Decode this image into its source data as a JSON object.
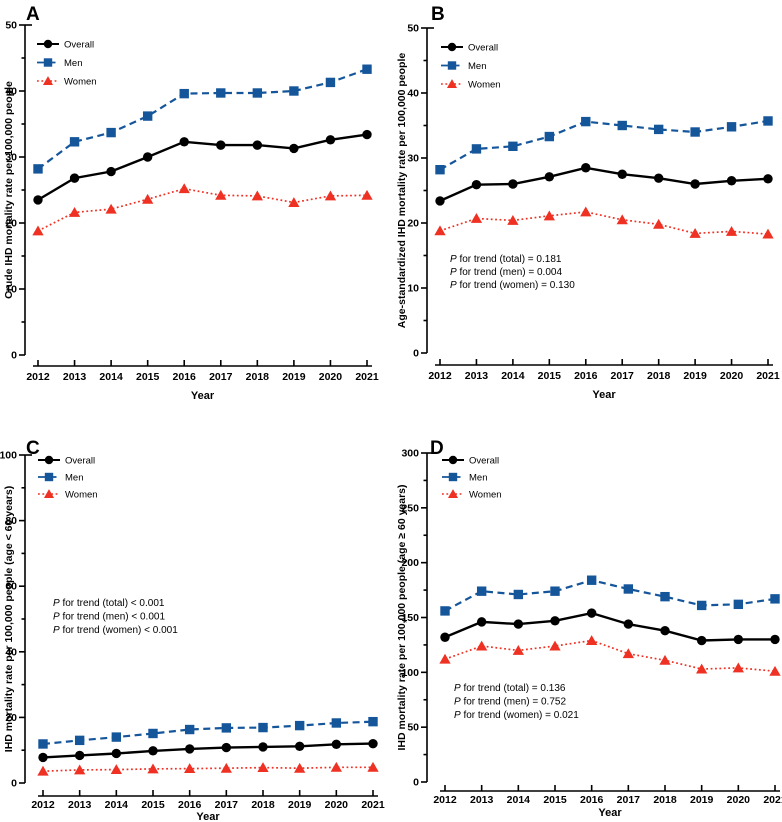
{
  "figure": {
    "background": "#ffffff",
    "description": "Four-panel line chart figure of IHD mortality rates in years 2012-2021"
  },
  "colors": {
    "overall": "#000000",
    "men": "#15569b",
    "women": "#ee3123",
    "axis": "#000000"
  },
  "legend_labels": [
    "Overall",
    "Men",
    "Women"
  ],
  "x_axis_label": "Year",
  "chart_data": [
    {
      "panel": "A",
      "type": "line",
      "xlabel": "Year",
      "ylabel": "Crude IHD mortality rate per 100,000 people",
      "x": [
        2012,
        2013,
        2014,
        2015,
        2016,
        2017,
        2018,
        2019,
        2020,
        2021
      ],
      "ylim": [
        0,
        50
      ],
      "ytick_step": 10,
      "yminor_step": 5,
      "legend_position": "top-left-inside",
      "grid": false,
      "series": [
        {
          "name": "Overall",
          "marker": "circle",
          "line": "solid",
          "color": "#000000",
          "values": [
            23.5,
            26.8,
            27.8,
            30.0,
            32.3,
            31.8,
            31.8,
            31.3,
            32.6,
            33.4
          ]
        },
        {
          "name": "Men",
          "marker": "square",
          "line": "dashed",
          "color": "#15569b",
          "values": [
            28.2,
            32.3,
            33.7,
            36.2,
            39.6,
            39.7,
            39.7,
            40.0,
            41.3,
            43.3
          ]
        },
        {
          "name": "Women",
          "marker": "triangle",
          "line": "dotted",
          "color": "#ee3123",
          "values": [
            18.8,
            21.6,
            22.1,
            23.6,
            25.2,
            24.2,
            24.1,
            23.1,
            24.1,
            24.2
          ]
        }
      ],
      "annotations": []
    },
    {
      "panel": "B",
      "type": "line",
      "xlabel": "Year",
      "ylabel": "Age-standardized IHD mortality rate per 100,000 people",
      "x": [
        2012,
        2013,
        2014,
        2015,
        2016,
        2017,
        2018,
        2019,
        2020,
        2021
      ],
      "ylim": [
        0,
        50
      ],
      "ytick_step": 10,
      "yminor_step": 5,
      "legend_position": "top-left-inside",
      "grid": false,
      "series": [
        {
          "name": "Overall",
          "marker": "circle",
          "line": "solid",
          "color": "#000000",
          "values": [
            23.4,
            25.9,
            26.0,
            27.1,
            28.5,
            27.5,
            26.9,
            26.0,
            26.5,
            26.8
          ]
        },
        {
          "name": "Men",
          "marker": "square",
          "line": "dashed",
          "color": "#15569b",
          "values": [
            28.2,
            31.4,
            31.8,
            33.3,
            35.6,
            35.0,
            34.4,
            34.0,
            34.8,
            35.7
          ]
        },
        {
          "name": "Women",
          "marker": "triangle",
          "line": "dotted",
          "color": "#ee3123",
          "values": [
            18.8,
            20.7,
            20.4,
            21.1,
            21.7,
            20.5,
            19.8,
            18.4,
            18.7,
            18.3
          ]
        }
      ],
      "annotations": [
        "P for trend (total) = 0.181",
        "P for trend (men) = 0.004",
        "P for trend (women) = 0.130"
      ]
    },
    {
      "panel": "C",
      "type": "line",
      "xlabel": "Year",
      "ylabel": "IHD mortality rate per 100,000 people (age < 60 years)",
      "x": [
        2012,
        2013,
        2014,
        2015,
        2016,
        2017,
        2018,
        2019,
        2020,
        2021
      ],
      "ylim": [
        0,
        100
      ],
      "ytick_step": 20,
      "yminor_step": 10,
      "legend_position": "top-left-inside",
      "grid": false,
      "series": [
        {
          "name": "Overall",
          "marker": "circle",
          "line": "solid",
          "color": "#000000",
          "values": [
            7.8,
            8.4,
            9.0,
            9.8,
            10.4,
            10.8,
            11.0,
            11.2,
            11.8,
            12.0
          ]
        },
        {
          "name": "Men",
          "marker": "square",
          "line": "dashed",
          "color": "#15569b",
          "values": [
            11.9,
            13.0,
            14.0,
            15.1,
            16.3,
            16.8,
            16.9,
            17.5,
            18.3,
            18.7
          ]
        },
        {
          "name": "Women",
          "marker": "triangle",
          "line": "dotted",
          "color": "#ee3123",
          "values": [
            3.6,
            4.0,
            4.1,
            4.3,
            4.4,
            4.5,
            4.7,
            4.5,
            4.8,
            4.8
          ]
        }
      ],
      "annotations": [
        "P for trend (total) < 0.001",
        "P for trend (men) < 0.001",
        "P for trend (women) < 0.001"
      ]
    },
    {
      "panel": "D",
      "type": "line",
      "xlabel": "Year",
      "ylabel": "IHD mortality rate per 100,000 people (age ≥ 60 years)",
      "x": [
        2012,
        2013,
        2014,
        2015,
        2016,
        2017,
        2018,
        2019,
        2020,
        2021
      ],
      "ylim": [
        0,
        300
      ],
      "ytick_step": 50,
      "yminor_step": 25,
      "legend_position": "top-left-inside",
      "grid": false,
      "series": [
        {
          "name": "Overall",
          "marker": "circle",
          "line": "solid",
          "color": "#000000",
          "values": [
            132,
            146,
            144,
            147,
            154,
            144,
            138,
            129,
            130,
            130
          ]
        },
        {
          "name": "Men",
          "marker": "square",
          "line": "dashed",
          "color": "#15569b",
          "values": [
            156,
            174,
            171,
            174,
            184,
            176,
            169,
            161,
            162,
            167
          ]
        },
        {
          "name": "Women",
          "marker": "triangle",
          "line": "dotted",
          "color": "#ee3123",
          "values": [
            112,
            124,
            120,
            124,
            129,
            117,
            111,
            103,
            104,
            101
          ]
        }
      ],
      "annotations": [
        "P for trend (total) = 0.136",
        "P for trend (men) = 0.752",
        "P for trend (women) = 0.021"
      ]
    }
  ]
}
